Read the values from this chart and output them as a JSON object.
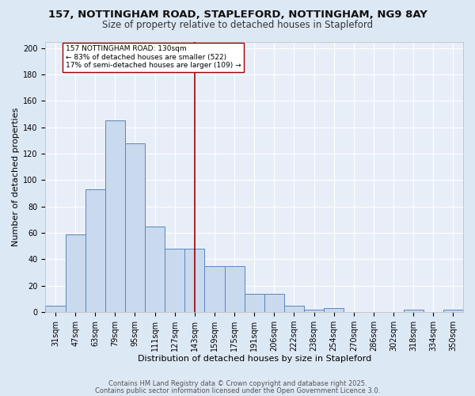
{
  "title_line1": "157, NOTTINGHAM ROAD, STAPLEFORD, NOTTINGHAM, NG9 8AY",
  "title_line2": "Size of property relative to detached houses in Stapleford",
  "xlabel": "Distribution of detached houses by size in Stapleford",
  "ylabel": "Number of detached properties",
  "categories": [
    "31sqm",
    "47sqm",
    "63sqm",
    "79sqm",
    "95sqm",
    "111sqm",
    "127sqm",
    "143sqm",
    "159sqm",
    "175sqm",
    "191sqm",
    "206sqm",
    "222sqm",
    "238sqm",
    "254sqm",
    "270sqm",
    "286sqm",
    "302sqm",
    "318sqm",
    "334sqm",
    "350sqm"
  ],
  "values": [
    5,
    59,
    93,
    145,
    128,
    65,
    48,
    48,
    35,
    35,
    14,
    14,
    5,
    2,
    3,
    0,
    0,
    0,
    2,
    0,
    2
  ],
  "bar_color": "#c9d9ee",
  "bar_edge_color": "#5b86bf",
  "vline_color": "#9b0000",
  "vline_x": 7.0,
  "annotation_text_line1": "157 NOTTINGHAM ROAD: 130sqm",
  "annotation_text_line2": "← 83% of detached houses are smaller (522)",
  "annotation_text_line3": "17% of semi-detached houses are larger (109) →",
  "annotation_box_color": "#ffffff",
  "annotation_box_edge_color": "#a00000",
  "ylim": [
    0,
    205
  ],
  "yticks": [
    0,
    20,
    40,
    60,
    80,
    100,
    120,
    140,
    160,
    180,
    200
  ],
  "footer_line1": "Contains HM Land Registry data © Crown copyright and database right 2025.",
  "footer_line2": "Contains public sector information licensed under the Open Government Licence 3.0.",
  "background_color": "#dde8f5",
  "plot_bg_color": "#e8eef8",
  "grid_color": "#ffffff",
  "title_fontsize": 9.5,
  "subtitle_fontsize": 8.5,
  "axis_label_fontsize": 8,
  "tick_fontsize": 7,
  "footer_fontsize": 6
}
